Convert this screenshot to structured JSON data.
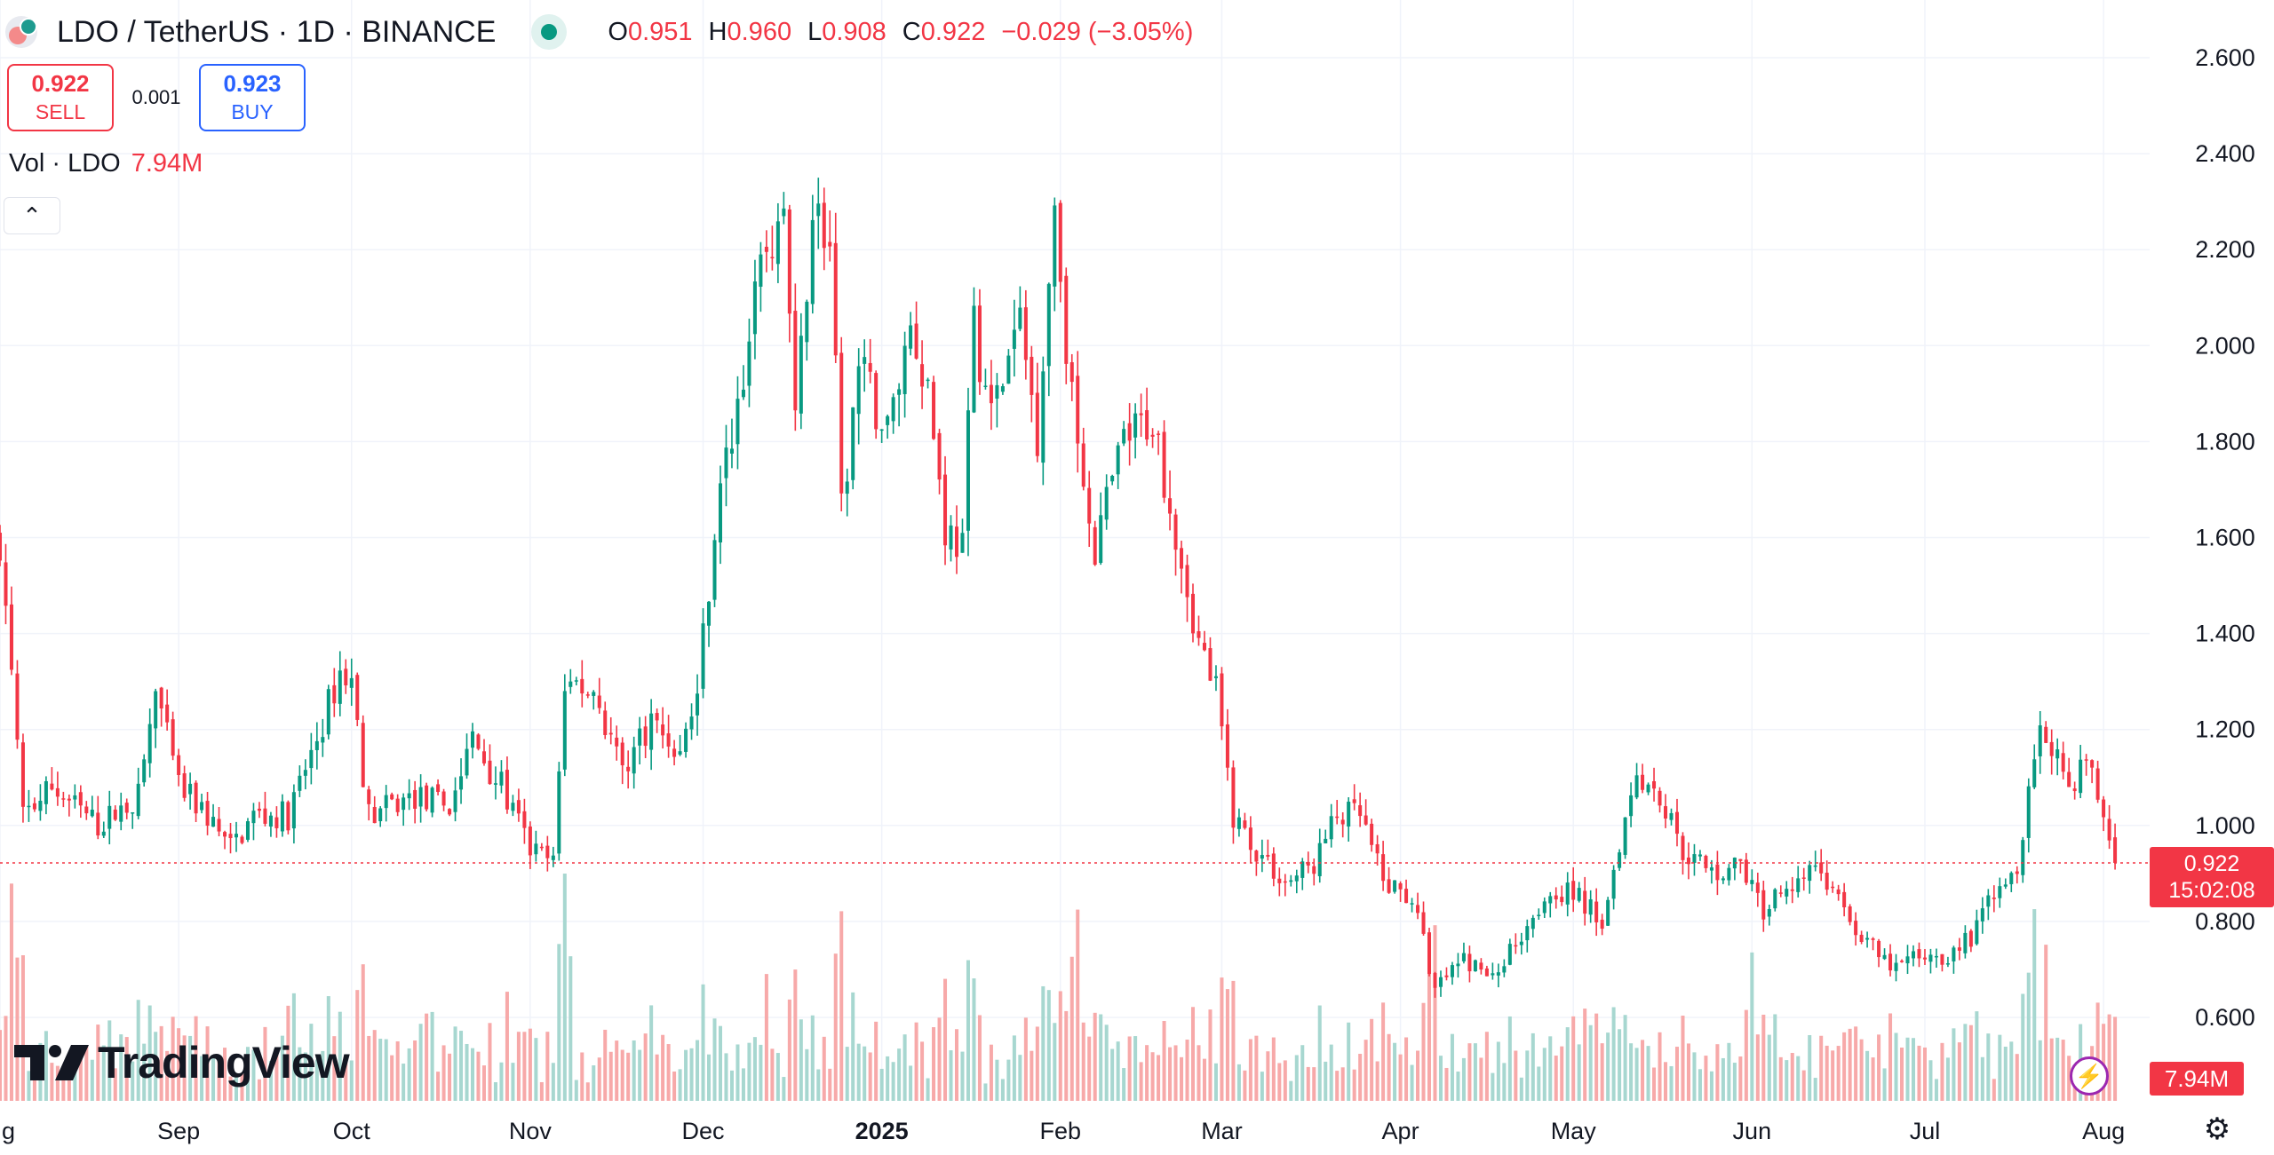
{
  "header": {
    "symbol": "LDO / TetherUS · 1D · BINANCE",
    "open_key": "O",
    "open": "0.951",
    "high_key": "H",
    "high": "0.960",
    "low_key": "L",
    "low": "0.908",
    "close_key": "C",
    "close": "0.922",
    "change": "−0.029 (−3.05%)"
  },
  "trade": {
    "sell_price": "0.922",
    "sell_label": "SELL",
    "spread": "0.001",
    "buy_price": "0.923",
    "buy_label": "BUY"
  },
  "volume_legend": {
    "label": "Vol · LDO",
    "value": "7.94M"
  },
  "collapse_glyph": "⌃",
  "brand": {
    "name": "TradingView"
  },
  "price_label": {
    "price": "0.922",
    "countdown": "15:02:08"
  },
  "volume_label": "7.94M",
  "icons": {
    "lightning": "lightning-icon",
    "settings": "gear-icon",
    "brand": "tradingview-logo"
  },
  "colors": {
    "up": "#089981",
    "down": "#f23645",
    "up_vol": "#a7d7d0",
    "down_vol": "#f7a9a9",
    "grid": "#f0f3fa",
    "text": "#131722"
  },
  "chart_data": {
    "type": "candlestick",
    "pair": "LDO / TetherUS",
    "interval": "1D",
    "exchange": "BINANCE",
    "y_ticks": [
      "2.600",
      "2.400",
      "2.200",
      "2.000",
      "1.800",
      "1.600",
      "1.400",
      "1.200",
      "1.000",
      "0.800",
      "0.600"
    ],
    "ylim": [
      0.55,
      2.65
    ],
    "x_ticks": [
      "Aug",
      "Sep",
      "Oct",
      "Nov",
      "Dec",
      "2025",
      "Feb",
      "Mar",
      "Apr",
      "May",
      "Jun",
      "Jul",
      "Aug"
    ],
    "x_tick_labels": [
      "g",
      "Sep",
      "Oct",
      "Nov",
      "Dec",
      "2025",
      "Feb",
      "Mar",
      "Apr",
      "May",
      "Jun",
      "Jul",
      "Aug"
    ],
    "x_range": [
      "2024-08-01",
      "2025-08-09"
    ],
    "current_price": 0.922,
    "price_series": [
      [
        "2024-08-01",
        1.6
      ],
      [
        "2024-08-05",
        1.02
      ],
      [
        "2024-08-10",
        1.08
      ],
      [
        "2024-08-18",
        1.0
      ],
      [
        "2024-08-25",
        1.06
      ],
      [
        "2024-08-28",
        1.28
      ],
      [
        "2024-09-01",
        1.08
      ],
      [
        "2024-09-06",
        1.02
      ],
      [
        "2024-09-10",
        0.95
      ],
      [
        "2024-09-14",
        1.02
      ],
      [
        "2024-09-20",
        1.02
      ],
      [
        "2024-09-25",
        1.18
      ],
      [
        "2024-09-29",
        1.32
      ],
      [
        "2024-10-01",
        1.3
      ],
      [
        "2024-10-04",
        1.02
      ],
      [
        "2024-10-12",
        1.06
      ],
      [
        "2024-10-18",
        1.04
      ],
      [
        "2024-10-22",
        1.18
      ],
      [
        "2024-10-27",
        1.08
      ],
      [
        "2024-11-01",
        0.95
      ],
      [
        "2024-11-05",
        0.92
      ],
      [
        "2024-11-07",
        1.3
      ],
      [
        "2024-11-12",
        1.28
      ],
      [
        "2024-11-17",
        1.12
      ],
      [
        "2024-11-22",
        1.22
      ],
      [
        "2024-11-27",
        1.15
      ],
      [
        "2024-11-30",
        1.28
      ],
      [
        "2024-12-03",
        1.62
      ],
      [
        "2024-12-06",
        1.82
      ],
      [
        "2024-12-09",
        2.02
      ],
      [
        "2024-12-12",
        2.2
      ],
      [
        "2024-12-15",
        2.28
      ],
      [
        "2024-12-17",
        1.82
      ],
      [
        "2024-12-20",
        2.3
      ],
      [
        "2024-12-23",
        2.2
      ],
      [
        "2024-12-25",
        1.65
      ],
      [
        "2024-12-28",
        1.95
      ],
      [
        "2025-01-02",
        1.82
      ],
      [
        "2025-01-06",
        2.05
      ],
      [
        "2025-01-09",
        1.92
      ],
      [
        "2025-01-12",
        1.62
      ],
      [
        "2025-01-15",
        1.58
      ],
      [
        "2025-01-17",
        2.05
      ],
      [
        "2025-01-20",
        1.85
      ],
      [
        "2025-01-25",
        2.05
      ],
      [
        "2025-01-28",
        1.82
      ],
      [
        "2025-01-31",
        2.3
      ],
      [
        "2025-02-03",
        1.88
      ],
      [
        "2025-02-07",
        1.58
      ],
      [
        "2025-02-12",
        1.8
      ],
      [
        "2025-02-17",
        1.85
      ],
      [
        "2025-02-21",
        1.62
      ],
      [
        "2025-02-25",
        1.38
      ],
      [
        "2025-02-28",
        1.28
      ],
      [
        "2025-03-03",
        1.02
      ],
      [
        "2025-03-07",
        0.95
      ],
      [
        "2025-03-12",
        0.88
      ],
      [
        "2025-03-17",
        0.92
      ],
      [
        "2025-03-21",
        1.02
      ],
      [
        "2025-03-25",
        1.02
      ],
      [
        "2025-03-29",
        0.88
      ],
      [
        "2025-04-03",
        0.85
      ],
      [
        "2025-04-07",
        0.66
      ],
      [
        "2025-04-12",
        0.72
      ],
      [
        "2025-04-17",
        0.68
      ],
      [
        "2025-04-22",
        0.78
      ],
      [
        "2025-04-27",
        0.87
      ],
      [
        "2025-05-02",
        0.85
      ],
      [
        "2025-05-06",
        0.8
      ],
      [
        "2025-05-09",
        0.97
      ],
      [
        "2025-05-12",
        1.12
      ],
      [
        "2025-05-16",
        1.06
      ],
      [
        "2025-05-20",
        0.95
      ],
      [
        "2025-05-25",
        0.9
      ],
      [
        "2025-05-30",
        0.92
      ],
      [
        "2025-06-03",
        0.82
      ],
      [
        "2025-06-07",
        0.88
      ],
      [
        "2025-06-12",
        0.92
      ],
      [
        "2025-06-15",
        0.86
      ],
      [
        "2025-06-20",
        0.77
      ],
      [
        "2025-06-25",
        0.7
      ],
      [
        "2025-06-30",
        0.73
      ],
      [
        "2025-07-05",
        0.73
      ],
      [
        "2025-07-10",
        0.78
      ],
      [
        "2025-07-13",
        0.87
      ],
      [
        "2025-07-17",
        0.92
      ],
      [
        "2025-07-21",
        1.22
      ],
      [
        "2025-07-23",
        1.18
      ],
      [
        "2025-07-26",
        1.08
      ],
      [
        "2025-07-29",
        1.14
      ],
      [
        "2025-08-01",
        1.02
      ],
      [
        "2025-08-03",
        0.922
      ]
    ],
    "volume_spikes": [
      [
        "2024-08-03",
        "high"
      ],
      [
        "2024-11-07",
        "high"
      ],
      [
        "2024-11-08",
        "high"
      ],
      [
        "2024-12-12",
        "high"
      ],
      [
        "2025-02-03",
        "high"
      ],
      [
        "2025-02-04",
        "high"
      ],
      [
        "2025-04-07",
        "high"
      ],
      [
        "2025-06-01",
        "high"
      ],
      [
        "2025-07-20",
        "high"
      ],
      [
        "2025-07-22",
        "high"
      ]
    ]
  }
}
